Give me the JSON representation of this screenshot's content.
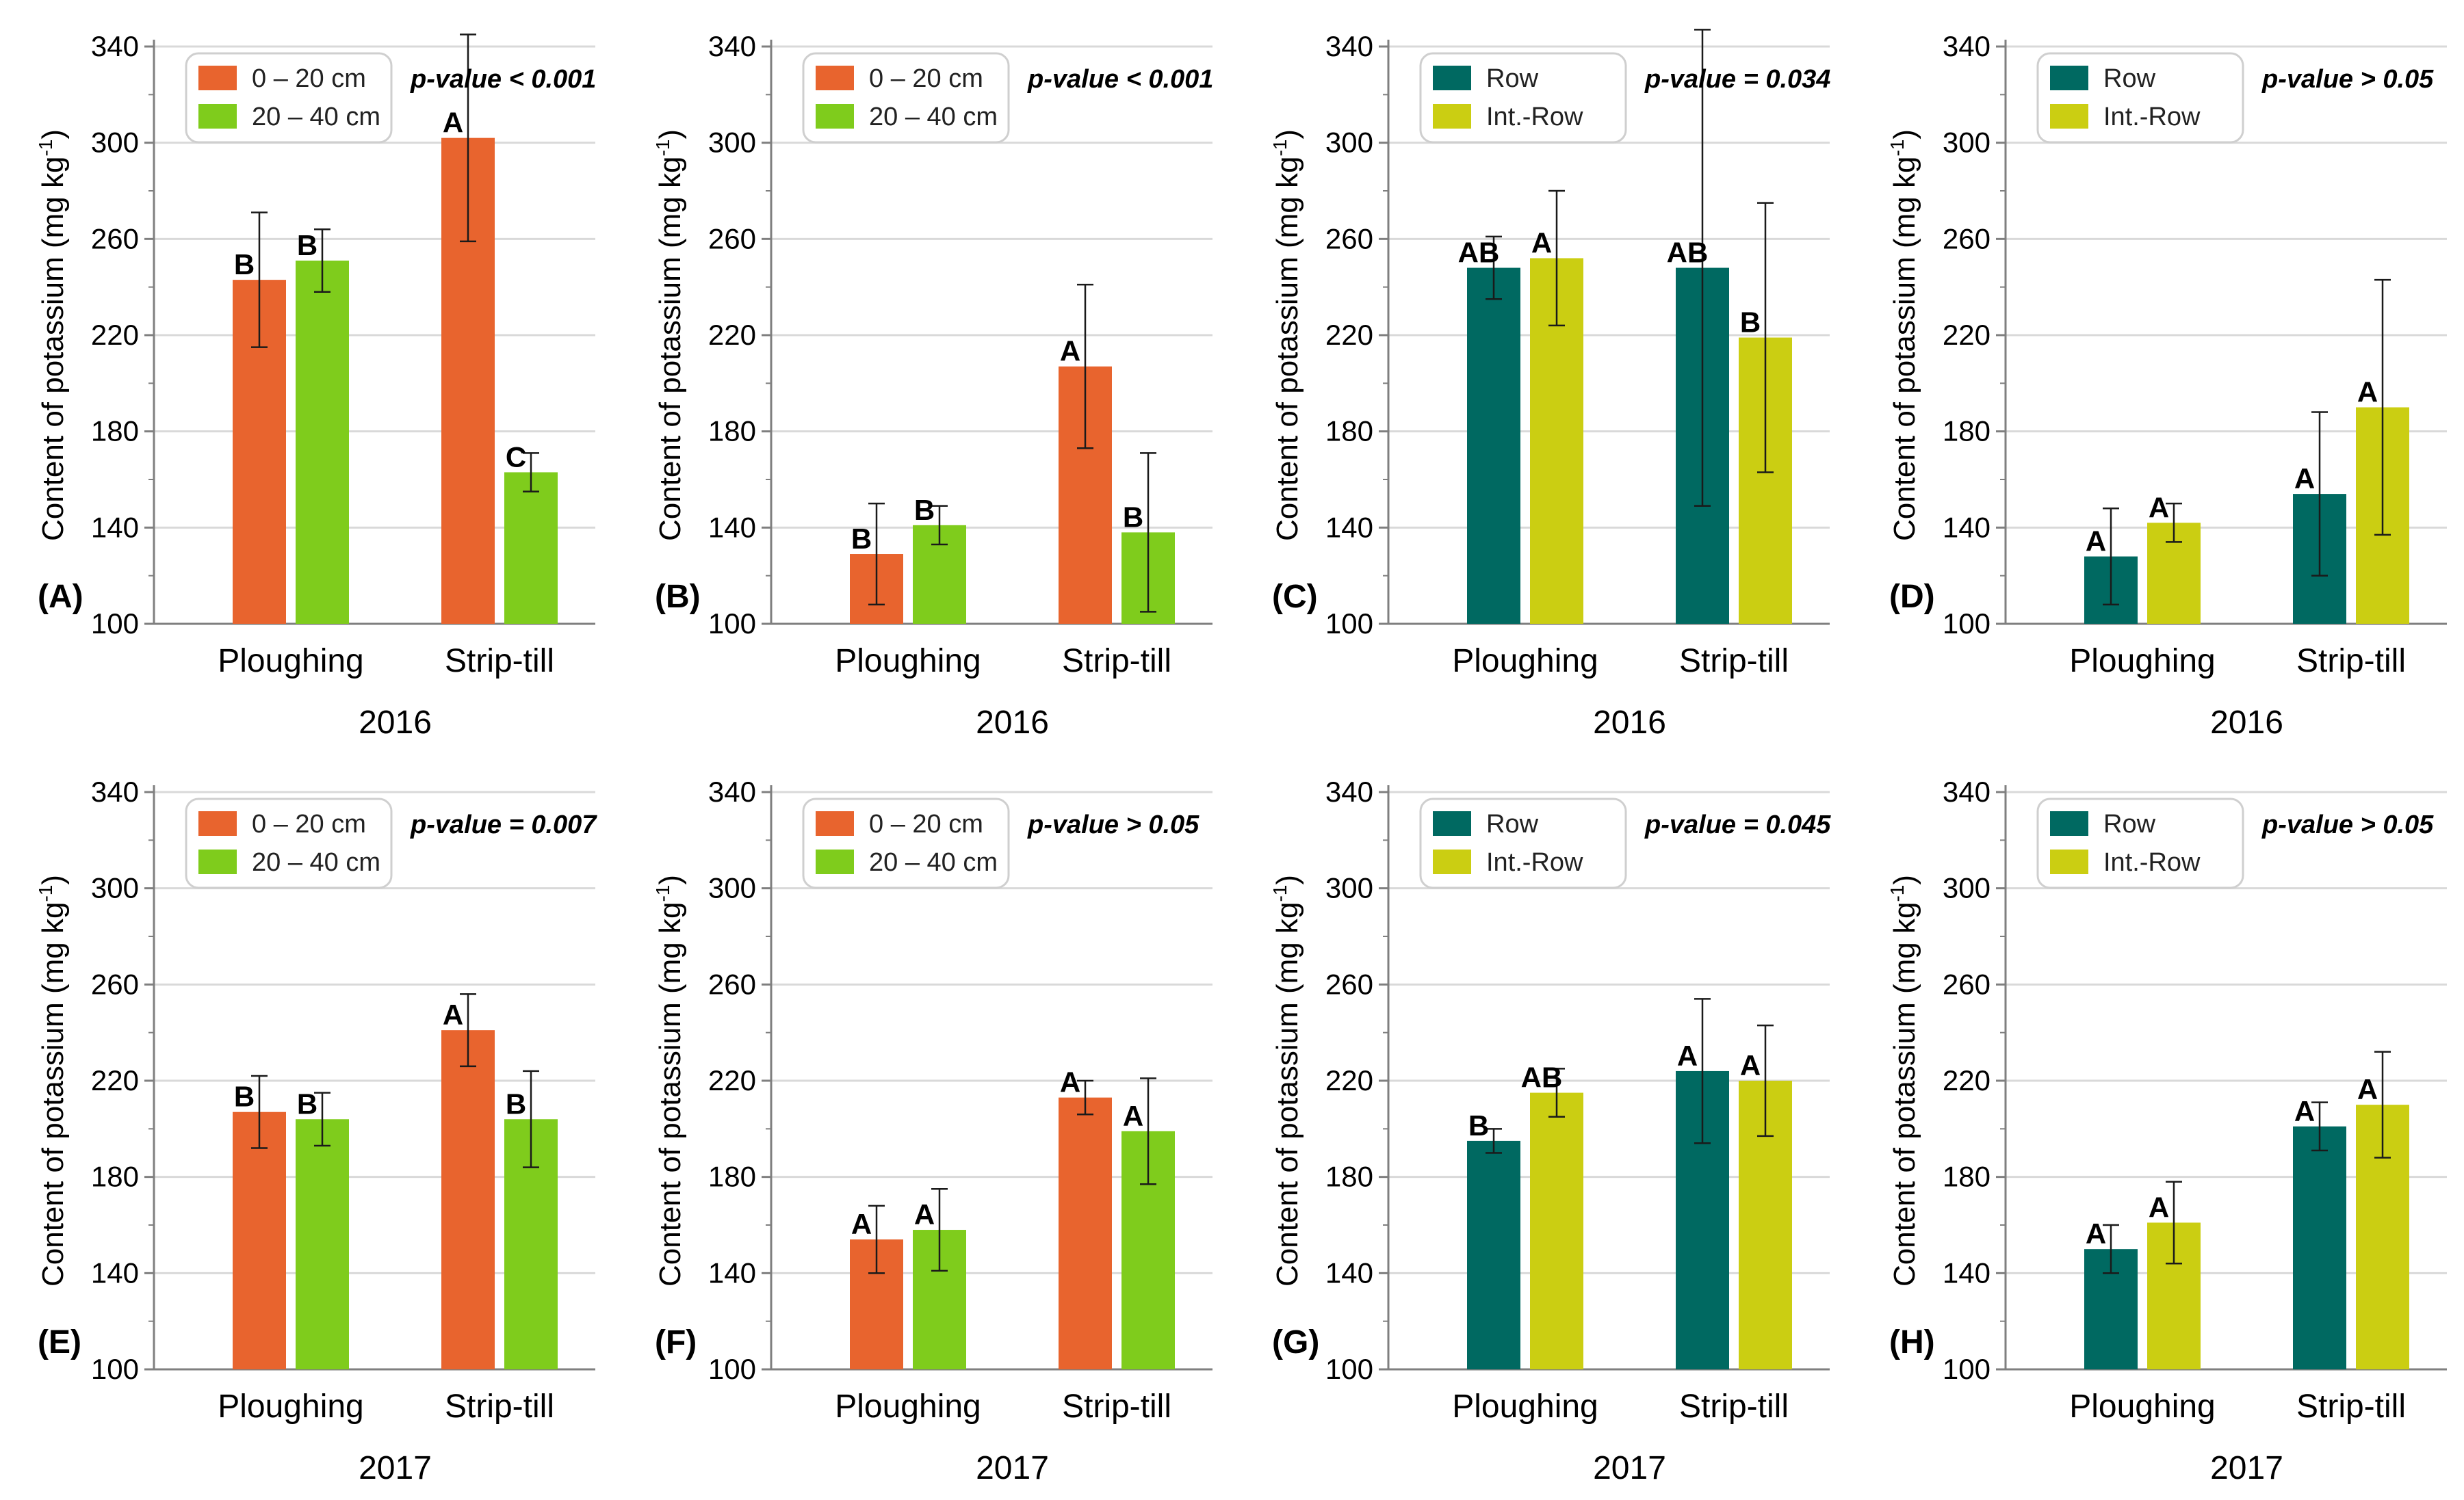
{
  "colors": {
    "depth_0_20": "#E8642E",
    "depth_20_40": "#7FCC1C",
    "row": "#006961",
    "int_row": "#CBCE12",
    "grid": "#D9D9D9",
    "axis": "#7F7F7F",
    "text": "#000000"
  },
  "chart_data": [
    {
      "id": "A",
      "type": "bar",
      "panel_label": "(A)",
      "year": "2016",
      "ylabel": "Content of potassium (mg kg",
      "ylabel_sup": "-1",
      "ylabel_close": ")",
      "ylim": [
        100,
        340
      ],
      "yticks": [
        "100",
        "140",
        "180",
        "220",
        "260",
        "300",
        "340"
      ],
      "categories": [
        "Ploughing",
        "Strip-till"
      ],
      "pvalue": "p-value < 0.001",
      "legend": [
        "0 – 20 cm",
        "20 – 40 cm"
      ],
      "series": [
        {
          "name": "0 – 20 cm",
          "color_key": "depth_0_20",
          "values": [
            243,
            302
          ],
          "errors": [
            28,
            43
          ],
          "letters": [
            "B",
            "A"
          ]
        },
        {
          "name": "20 – 40 cm",
          "color_key": "depth_20_40",
          "values": [
            251,
            163
          ],
          "errors": [
            13,
            8
          ],
          "letters": [
            "B",
            "C"
          ]
        }
      ]
    },
    {
      "id": "B",
      "type": "bar",
      "panel_label": "(B)",
      "year": "2016",
      "ylabel": "Content of potassium (mg kg",
      "ylabel_sup": "-1",
      "ylabel_close": ")",
      "ylim": [
        100,
        340
      ],
      "yticks": [
        "100",
        "140",
        "180",
        "220",
        "260",
        "300",
        "340"
      ],
      "categories": [
        "Ploughing",
        "Strip-till"
      ],
      "pvalue": "p-value < 0.001",
      "legend": [
        "0 – 20 cm",
        "20 – 40 cm"
      ],
      "series": [
        {
          "name": "0 – 20 cm",
          "color_key": "depth_0_20",
          "values": [
            129,
            207
          ],
          "errors": [
            21,
            34
          ],
          "letters": [
            "B",
            "A"
          ]
        },
        {
          "name": "20 – 40 cm",
          "color_key": "depth_20_40",
          "values": [
            141,
            138
          ],
          "errors": [
            8,
            33
          ],
          "letters": [
            "B",
            "B"
          ]
        }
      ]
    },
    {
      "id": "C",
      "type": "bar",
      "panel_label": "(C)",
      "year": "2016",
      "ylabel": "Content of potassium (mg kg",
      "ylabel_sup": "-1",
      "ylabel_close": ")",
      "ylim": [
        100,
        340
      ],
      "yticks": [
        "100",
        "140",
        "180",
        "220",
        "260",
        "300",
        "340"
      ],
      "categories": [
        "Ploughing",
        "Strip-till"
      ],
      "pvalue": "p-value = 0.034",
      "legend": [
        "Row",
        "Int.-Row"
      ],
      "series": [
        {
          "name": "Row",
          "color_key": "row",
          "values": [
            248,
            248
          ],
          "errors": [
            13,
            99
          ],
          "letters": [
            "AB",
            "AB"
          ]
        },
        {
          "name": "Int.-Row",
          "color_key": "int_row",
          "values": [
            252,
            219
          ],
          "errors": [
            28,
            56
          ],
          "letters": [
            "A",
            "B"
          ]
        }
      ]
    },
    {
      "id": "D",
      "type": "bar",
      "panel_label": "(D)",
      "year": "2016",
      "ylabel": "Content of potassium (mg kg",
      "ylabel_sup": "-1",
      "ylabel_close": ")",
      "ylim": [
        100,
        340
      ],
      "yticks": [
        "100",
        "140",
        "180",
        "220",
        "260",
        "300",
        "340"
      ],
      "categories": [
        "Ploughing",
        "Strip-till"
      ],
      "pvalue": "p-value > 0.05",
      "legend": [
        "Row",
        "Int.-Row"
      ],
      "series": [
        {
          "name": "Row",
          "color_key": "row",
          "values": [
            128,
            154
          ],
          "errors": [
            20,
            34
          ],
          "letters": [
            "A",
            "A"
          ]
        },
        {
          "name": "Int.-Row",
          "color_key": "int_row",
          "values": [
            142,
            190
          ],
          "errors": [
            8,
            53
          ],
          "letters": [
            "A",
            "A"
          ]
        }
      ]
    },
    {
      "id": "E",
      "type": "bar",
      "panel_label": "(E)",
      "year": "2017",
      "ylabel": "Content of potassium (mg kg",
      "ylabel_sup": "-1",
      "ylabel_close": ")",
      "ylim": [
        100,
        340
      ],
      "yticks": [
        "100",
        "140",
        "180",
        "220",
        "260",
        "300",
        "340"
      ],
      "categories": [
        "Ploughing",
        "Strip-till"
      ],
      "pvalue": "p-value = 0.007",
      "legend": [
        "0 – 20 cm",
        "20 – 40 cm"
      ],
      "series": [
        {
          "name": "0 – 20 cm",
          "color_key": "depth_0_20",
          "values": [
            207,
            241
          ],
          "errors": [
            15,
            15
          ],
          "letters": [
            "B",
            "A"
          ]
        },
        {
          "name": "20 – 40 cm",
          "color_key": "depth_20_40",
          "values": [
            204,
            204
          ],
          "errors": [
            11,
            20
          ],
          "letters": [
            "B",
            "B"
          ]
        }
      ]
    },
    {
      "id": "F",
      "type": "bar",
      "panel_label": "(F)",
      "year": "2017",
      "ylabel": "Content of potassium (mg kg",
      "ylabel_sup": "-1",
      "ylabel_close": ")",
      "ylim": [
        100,
        340
      ],
      "yticks": [
        "100",
        "140",
        "180",
        "220",
        "260",
        "300",
        "340"
      ],
      "categories": [
        "Ploughing",
        "Strip-till"
      ],
      "pvalue": "p-value > 0.05",
      "legend": [
        "0 – 20 cm",
        "20 – 40 cm"
      ],
      "series": [
        {
          "name": "0 – 20 cm",
          "color_key": "depth_0_20",
          "values": [
            154,
            213
          ],
          "errors": [
            14,
            7
          ],
          "letters": [
            "A",
            "A"
          ]
        },
        {
          "name": "20 – 40 cm",
          "color_key": "depth_20_40",
          "values": [
            158,
            199
          ],
          "errors": [
            17,
            22
          ],
          "letters": [
            "A",
            "A"
          ]
        }
      ]
    },
    {
      "id": "G",
      "type": "bar",
      "panel_label": "(G)",
      "year": "2017",
      "ylabel": "Content of potassium (mg kg",
      "ylabel_sup": "-1",
      "ylabel_close": ")",
      "ylim": [
        100,
        340
      ],
      "yticks": [
        "100",
        "140",
        "180",
        "220",
        "260",
        "300",
        "340"
      ],
      "categories": [
        "Ploughing",
        "Strip-till"
      ],
      "pvalue": "p-value = 0.045",
      "legend": [
        "Row",
        "Int.-Row"
      ],
      "series": [
        {
          "name": "Row",
          "color_key": "row",
          "values": [
            195,
            224
          ],
          "errors": [
            5,
            30
          ],
          "letters": [
            "B",
            "A"
          ]
        },
        {
          "name": "Int.-Row",
          "color_key": "int_row",
          "values": [
            215,
            220
          ],
          "errors": [
            10,
            23
          ],
          "letters": [
            "AB",
            "A"
          ]
        }
      ]
    },
    {
      "id": "H",
      "type": "bar",
      "panel_label": "(H)",
      "year": "2017",
      "ylabel": "Content of potassium (mg kg",
      "ylabel_sup": "-1",
      "ylabel_close": ")",
      "ylim": [
        100,
        340
      ],
      "yticks": [
        "100",
        "140",
        "180",
        "220",
        "260",
        "300",
        "340"
      ],
      "categories": [
        "Ploughing",
        "Strip-till"
      ],
      "pvalue": "p-value > 0.05",
      "legend": [
        "Row",
        "Int.-Row"
      ],
      "series": [
        {
          "name": "Row",
          "color_key": "row",
          "values": [
            150,
            201
          ],
          "errors": [
            10,
            10
          ],
          "letters": [
            "A",
            "A"
          ]
        },
        {
          "name": "Int.-Row",
          "color_key": "int_row",
          "values": [
            161,
            210
          ],
          "errors": [
            17,
            22
          ],
          "letters": [
            "A",
            "A"
          ]
        }
      ]
    }
  ]
}
